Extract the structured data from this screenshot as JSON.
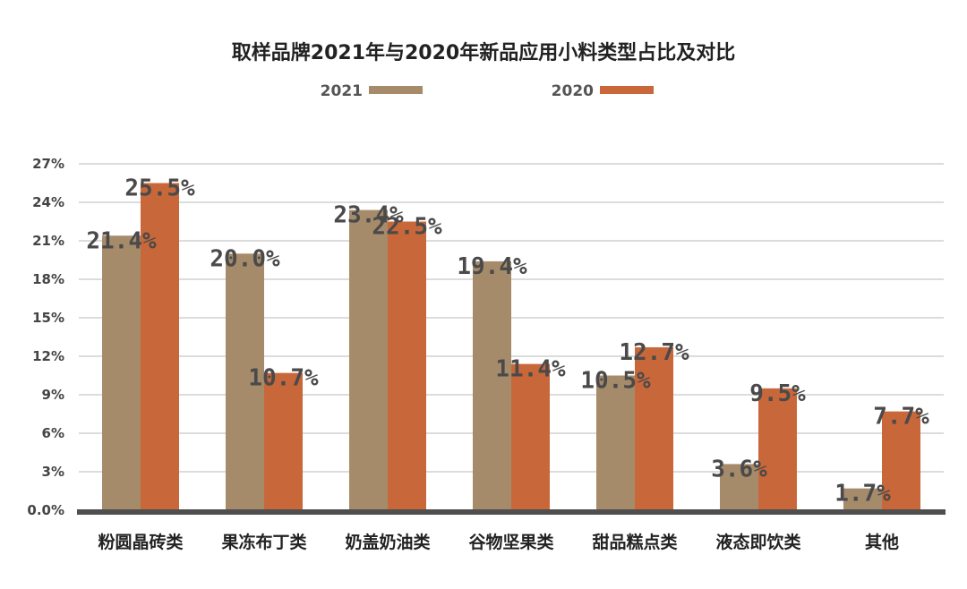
{
  "chart_data": {
    "type": "bar",
    "title": "取样品牌2021年与2020年新品应用小料类型占比及对比",
    "xlabel": "",
    "ylabel": "",
    "ylim": [
      0,
      27
    ],
    "yticks": [
      "0.0%",
      "3%",
      "6%",
      "9%",
      "12%",
      "15%",
      "18%",
      "21%",
      "24%",
      "27%"
    ],
    "grid": true,
    "legend": "top-center",
    "categories": [
      "粉圆晶砖类",
      "果冻布丁类",
      "奶盖奶油类",
      "谷物坚果类",
      "甜品糕点类",
      "液态即饮类",
      "其他"
    ],
    "series": [
      {
        "name": "2021",
        "color": "#a68b6b",
        "values": [
          21.4,
          20.0,
          23.4,
          19.4,
          10.5,
          3.6,
          1.7
        ],
        "labels": [
          "21.4%",
          "20.0%",
          "23.4%",
          "19.4%",
          "10.5%",
          "3.6%",
          "1.7%"
        ]
      },
      {
        "name": "2020",
        "color": "#c8683a",
        "values": [
          25.5,
          10.7,
          22.5,
          11.4,
          12.7,
          9.5,
          7.7
        ],
        "labels": [
          "25.5%",
          "10.7%",
          "22.5%",
          "11.4%",
          "12.7%",
          "9.5%",
          "7.7%"
        ]
      }
    ]
  }
}
